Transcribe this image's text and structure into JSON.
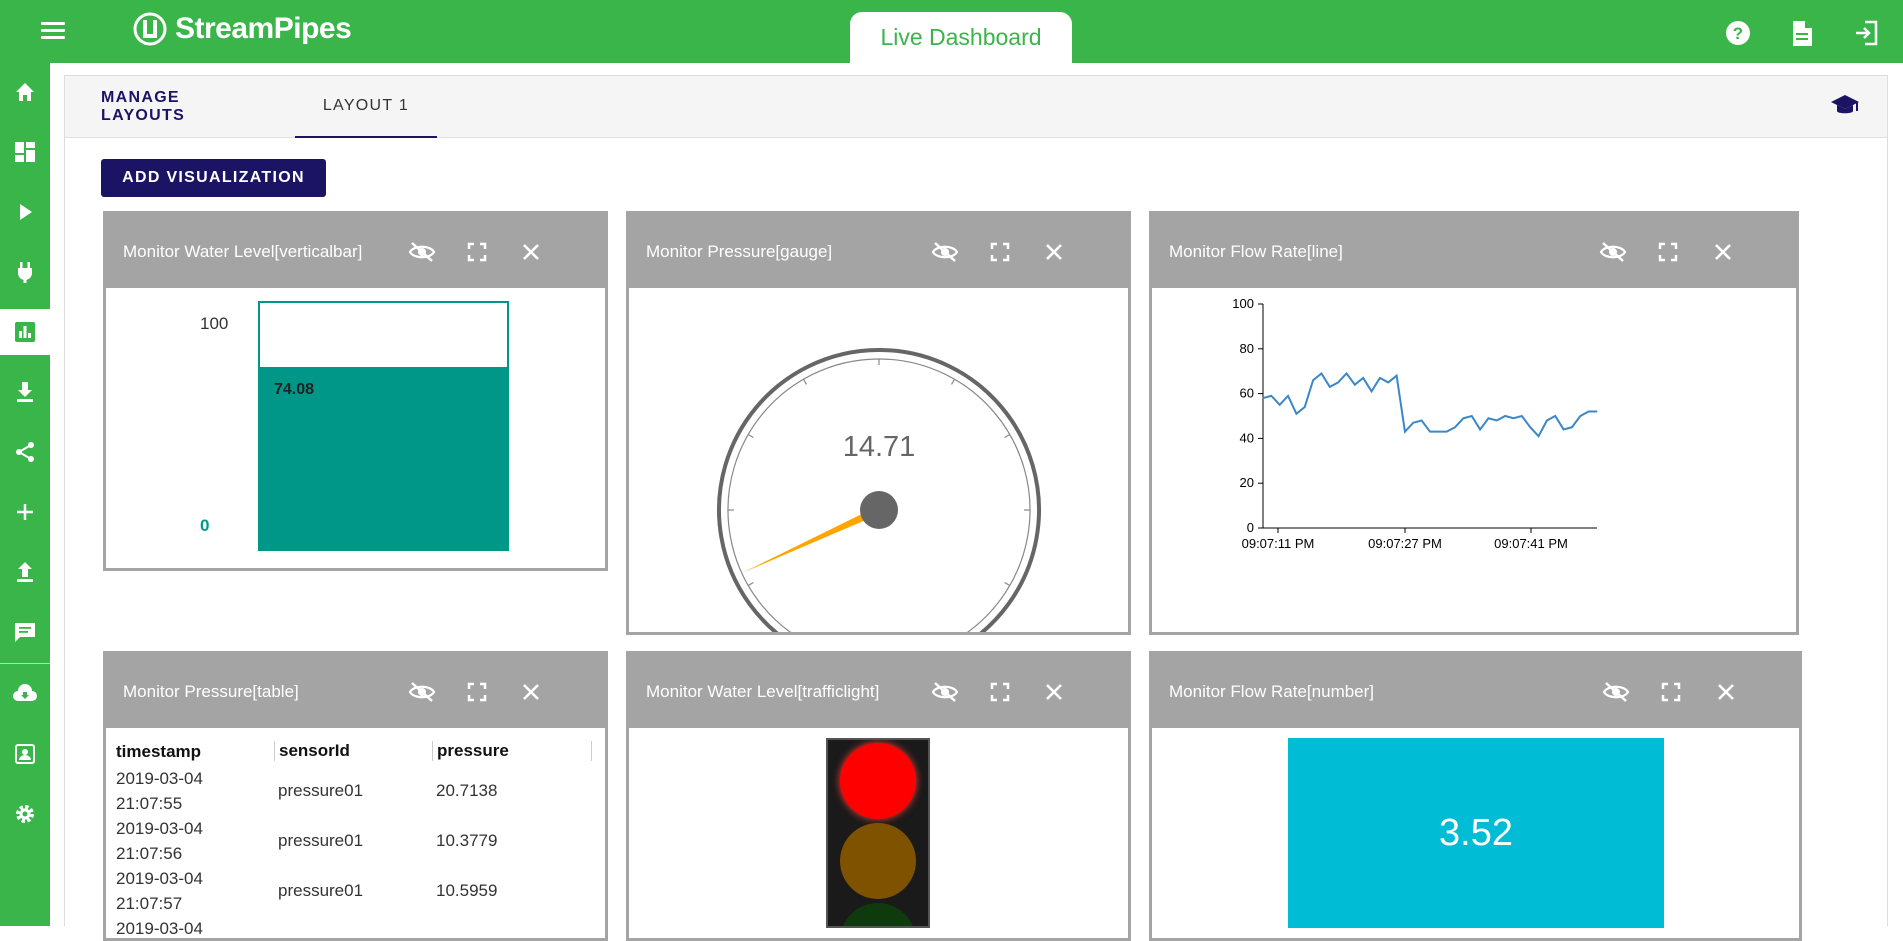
{
  "app": {
    "name": "StreamPipes",
    "page_title": "Live Dashboard"
  },
  "topbar_icons": [
    "help-icon",
    "docs-icon",
    "logout-icon"
  ],
  "sidebar_items": [
    "home-icon",
    "dashboard-icon",
    "pipelines-icon",
    "connect-icon",
    "live-dashboard-icon",
    "install-icon",
    "share-icon",
    "add-icon",
    "upload-icon",
    "notifications-icon",
    "cloud-download-icon",
    "account-icon",
    "settings-icon"
  ],
  "tabs": {
    "manage": "MANAGE LAYOUTS",
    "layout1": "LAYOUT 1"
  },
  "add_button": "ADD VISUALIZATION",
  "widgets": {
    "water_bar": {
      "title": "Monitor Water Level[verticalbar]",
      "max_label": "100",
      "min_label": "0",
      "value": 74.08,
      "value_label": "74.08"
    },
    "gauge": {
      "title": "Monitor Pressure[gauge]",
      "value": 14.71,
      "value_label": "14.71"
    },
    "line": {
      "title": "Monitor Flow Rate[line]"
    },
    "table": {
      "title": "Monitor Pressure[table]",
      "headers": [
        "timestamp",
        "sensorId",
        "pressure"
      ],
      "rows": [
        {
          "date": "2019-03-04",
          "time": "21:07:55",
          "sensor": "pressure01",
          "pressure": "20.7138"
        },
        {
          "date": "2019-03-04",
          "time": "21:07:56",
          "sensor": "pressure01",
          "pressure": "10.3779"
        },
        {
          "date": "2019-03-04",
          "time": "21:07:57",
          "sensor": "pressure01",
          "pressure": "10.5959"
        },
        {
          "date": "2019-03-04",
          "time": "",
          "sensor": "",
          "pressure": ""
        }
      ]
    },
    "traffic": {
      "title": "Monitor Water Level[trafficlight]",
      "active": "red"
    },
    "number": {
      "title": "Monitor Flow Rate[number]",
      "value": "3.52"
    }
  },
  "colors": {
    "brand_green": "#39b54a",
    "navy": "#1b1464",
    "teal": "#009688",
    "cyan": "#00bcd4",
    "gauge_needle": "#ffa500",
    "line_series": "#3a87c8"
  },
  "chart_data": {
    "type": "line",
    "x_ticks": [
      "09:07:11 PM",
      "09:07:27 PM",
      "09:07:41 PM"
    ],
    "ylim": [
      0,
      100
    ],
    "y_ticks": [
      0,
      20,
      40,
      60,
      80,
      100
    ],
    "series": [
      {
        "values": [
          58,
          59,
          55,
          59,
          51,
          54,
          66,
          69,
          63,
          65,
          69,
          64,
          67,
          61,
          67,
          65,
          68,
          43,
          47,
          48,
          43,
          43,
          43,
          45,
          49,
          50,
          44,
          49,
          48,
          50,
          49,
          50,
          45,
          41,
          48,
          50,
          44,
          45,
          50,
          52,
          52
        ]
      }
    ]
  }
}
